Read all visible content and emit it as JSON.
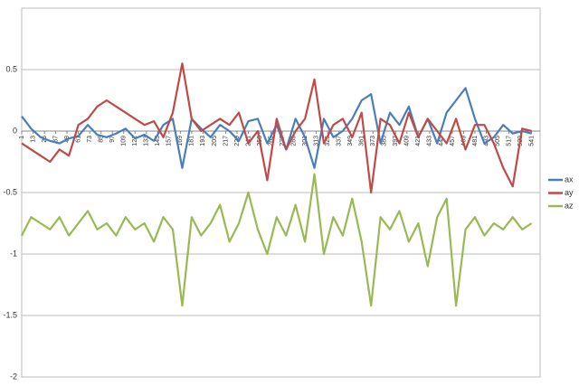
{
  "chart_data": {
    "type": "line",
    "x": [
      1,
      11,
      21,
      31,
      41,
      51,
      61,
      71,
      81,
      91,
      101,
      111,
      121,
      131,
      141,
      151,
      161,
      171,
      181,
      191,
      201,
      211,
      221,
      231,
      241,
      251,
      261,
      271,
      281,
      291,
      301,
      311,
      321,
      331,
      341,
      351,
      361,
      371,
      381,
      391,
      401,
      411,
      421,
      431,
      441,
      451,
      461,
      471,
      481,
      491,
      501,
      511,
      521,
      531,
      541
    ],
    "series": [
      {
        "name": "ax",
        "color": "#4a7ebb",
        "values": [
          0.12,
          0.02,
          -0.05,
          -0.08,
          -0.1,
          -0.06,
          -0.04,
          0.05,
          -0.03,
          -0.05,
          -0.02,
          0.02,
          -0.06,
          -0.03,
          -0.08,
          0.05,
          0.1,
          -0.3,
          0.1,
          0.02,
          -0.05,
          0.05,
          0.0,
          -0.08,
          0.08,
          0.1,
          -0.1,
          0.05,
          -0.15,
          0.1,
          -0.05,
          -0.3,
          0.1,
          -0.05,
          0.0,
          0.1,
          0.25,
          0.3,
          -0.1,
          0.15,
          0.05,
          0.2,
          -0.05,
          0.1,
          -0.1,
          0.15,
          0.25,
          0.35,
          0.1,
          -0.1,
          -0.05,
          0.05,
          -0.02,
          0.0,
          -0.02
        ]
      },
      {
        "name": "ay",
        "color": "#be4b48",
        "values": [
          -0.1,
          -0.15,
          -0.2,
          -0.25,
          -0.15,
          -0.2,
          0.05,
          0.1,
          0.2,
          0.25,
          0.2,
          0.15,
          0.1,
          0.05,
          0.08,
          -0.05,
          0.15,
          0.55,
          0.1,
          0.0,
          0.05,
          0.1,
          0.05,
          0.15,
          -0.1,
          0.0,
          -0.4,
          0.1,
          -0.15,
          0.0,
          0.1,
          0.42,
          -0.1,
          0.05,
          0.1,
          -0.05,
          0.15,
          -0.5,
          0.1,
          0.05,
          -0.1,
          0.15,
          -0.05,
          0.1,
          0.0,
          -0.1,
          0.1,
          -0.15,
          0.05,
          0.05,
          -0.1,
          -0.3,
          -0.45,
          0.02,
          0.0
        ]
      },
      {
        "name": "az",
        "color": "#98b954",
        "values": [
          -0.85,
          -0.7,
          -0.75,
          -0.8,
          -0.7,
          -0.85,
          -0.75,
          -0.65,
          -0.8,
          -0.75,
          -0.85,
          -0.7,
          -0.8,
          -0.75,
          -0.9,
          -0.7,
          -0.8,
          -1.42,
          -0.7,
          -0.85,
          -0.75,
          -0.6,
          -0.9,
          -0.75,
          -0.5,
          -0.8,
          -1.0,
          -0.7,
          -0.85,
          -0.6,
          -0.9,
          -0.35,
          -1.0,
          -0.7,
          -0.85,
          -0.55,
          -0.9,
          -1.42,
          -0.7,
          -0.8,
          -0.65,
          -0.9,
          -0.75,
          -1.1,
          -0.7,
          -0.55,
          -1.42,
          -0.8,
          -0.7,
          -0.85,
          -0.75,
          -0.8,
          -0.7,
          -0.8,
          -0.75
        ]
      }
    ],
    "xlim": [
      1,
      550
    ],
    "xticks": [
      1,
      13,
      25,
      37,
      49,
      61,
      73,
      85,
      97,
      109,
      121,
      133,
      145,
      157,
      169,
      181,
      193,
      205,
      217,
      229,
      241,
      253,
      265,
      277,
      289,
      301,
      313,
      325,
      337,
      349,
      361,
      373,
      385,
      397,
      409,
      421,
      433,
      445,
      457,
      469,
      481,
      493,
      505,
      517,
      529,
      541
    ],
    "ylim": [
      -2,
      1
    ],
    "yticks": [
      -2,
      -1.5,
      -1,
      -0.5,
      0,
      0.5
    ],
    "grid": true,
    "legend": "right"
  }
}
